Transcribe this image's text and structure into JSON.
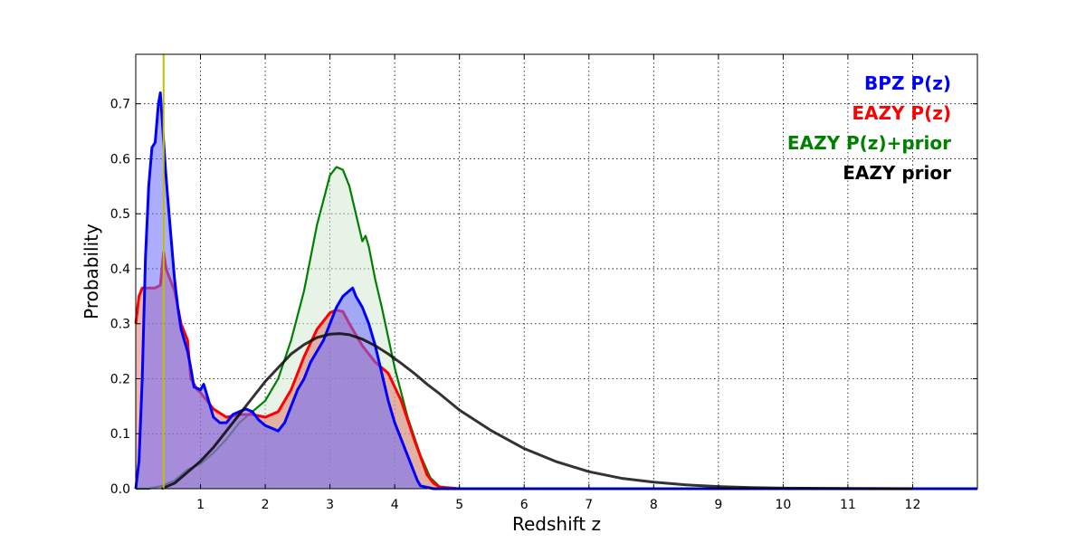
{
  "chart_data": {
    "type": "area",
    "title": "",
    "xlabel": "Redshift z",
    "ylabel": "Probability",
    "xlim": [
      0,
      13
    ],
    "ylim": [
      0,
      0.79
    ],
    "grid": true,
    "legend_placement": "top-right",
    "x_ticks": [
      1,
      2,
      3,
      4,
      5,
      6,
      7,
      8,
      9,
      10,
      11,
      12
    ],
    "y_ticks": [
      0.0,
      0.1,
      0.2,
      0.3,
      0.4,
      0.5,
      0.6,
      0.7
    ],
    "x_tick_labels": [
      "1",
      "2",
      "3",
      "4",
      "5",
      "6",
      "7",
      "8",
      "9",
      "10",
      "11",
      "12"
    ],
    "y_tick_labels": [
      "0.0",
      "0.1",
      "0.2",
      "0.3",
      "0.4",
      "0.5",
      "0.6",
      "0.7"
    ],
    "vertical_line": {
      "x": 0.43,
      "color": "#bfbf00"
    },
    "series": [
      {
        "name": "EAZY P(z)+prior",
        "color": "#008000",
        "fill": "#cfe8cf",
        "fill_opacity": 0.5,
        "line_width": 2.2,
        "x": [
          0,
          0.2,
          0.4,
          0.6,
          0.8,
          1.0,
          1.2,
          1.4,
          1.6,
          1.8,
          2.0,
          2.2,
          2.4,
          2.6,
          2.8,
          3.0,
          3.1,
          3.2,
          3.3,
          3.4,
          3.5,
          3.55,
          3.6,
          3.7,
          3.8,
          4.0,
          4.2,
          4.4,
          4.55,
          4.7,
          5.0,
          6,
          8,
          10,
          12,
          13
        ],
        "y": [
          0,
          0.0,
          0.005,
          0.015,
          0.035,
          0.045,
          0.065,
          0.09,
          0.12,
          0.14,
          0.16,
          0.2,
          0.27,
          0.36,
          0.48,
          0.57,
          0.585,
          0.58,
          0.55,
          0.5,
          0.45,
          0.46,
          0.44,
          0.38,
          0.33,
          0.22,
          0.13,
          0.06,
          0.02,
          0.003,
          0,
          0,
          0,
          0,
          0,
          0
        ]
      },
      {
        "name": "EAZY P(z)",
        "color": "#ff0000",
        "fill": "#e07060",
        "fill_opacity": 0.5,
        "line_width": 3,
        "x": [
          0,
          0.05,
          0.1,
          0.3,
          0.38,
          0.43,
          0.47,
          0.5,
          0.6,
          0.7,
          0.8,
          0.85,
          0.9,
          0.95,
          1.0,
          1.2,
          1.4,
          1.6,
          1.8,
          2.0,
          2.2,
          2.4,
          2.6,
          2.8,
          3.0,
          3.1,
          3.2,
          3.3,
          3.5,
          3.7,
          3.9,
          4.1,
          4.3,
          4.5,
          4.6,
          4.7,
          5.0,
          13
        ],
        "y": [
          0.3,
          0.35,
          0.365,
          0.365,
          0.37,
          0.43,
          0.4,
          0.39,
          0.36,
          0.3,
          0.27,
          0.2,
          0.19,
          0.18,
          0.175,
          0.145,
          0.13,
          0.135,
          0.135,
          0.13,
          0.14,
          0.18,
          0.24,
          0.29,
          0.32,
          0.325,
          0.322,
          0.3,
          0.26,
          0.23,
          0.21,
          0.16,
          0.09,
          0.025,
          0.01,
          0.003,
          0,
          0
        ]
      },
      {
        "name": "BPZ P(z)",
        "color": "#0000ff",
        "fill": "#6a6aff",
        "fill_opacity": 0.55,
        "line_width": 3,
        "x": [
          0,
          0.05,
          0.1,
          0.15,
          0.2,
          0.25,
          0.3,
          0.35,
          0.38,
          0.42,
          0.46,
          0.5,
          0.55,
          0.6,
          0.65,
          0.7,
          0.75,
          0.8,
          0.85,
          0.9,
          1.0,
          1.05,
          1.1,
          1.2,
          1.3,
          1.4,
          1.5,
          1.6,
          1.7,
          1.8,
          1.9,
          2.0,
          2.1,
          2.2,
          2.3,
          2.4,
          2.5,
          2.6,
          2.7,
          2.8,
          2.9,
          3.0,
          3.1,
          3.2,
          3.3,
          3.35,
          3.4,
          3.5,
          3.6,
          3.7,
          3.8,
          3.9,
          4.0,
          4.1,
          4.2,
          4.3,
          4.35,
          4.4,
          4.6,
          5.0,
          8,
          12,
          13
        ],
        "y": [
          0.0,
          0.05,
          0.2,
          0.42,
          0.55,
          0.62,
          0.63,
          0.7,
          0.72,
          0.65,
          0.58,
          0.52,
          0.45,
          0.38,
          0.33,
          0.29,
          0.27,
          0.25,
          0.22,
          0.185,
          0.18,
          0.19,
          0.17,
          0.13,
          0.12,
          0.12,
          0.135,
          0.14,
          0.145,
          0.14,
          0.125,
          0.115,
          0.11,
          0.105,
          0.12,
          0.15,
          0.18,
          0.2,
          0.23,
          0.25,
          0.27,
          0.3,
          0.33,
          0.35,
          0.36,
          0.365,
          0.35,
          0.33,
          0.3,
          0.26,
          0.21,
          0.16,
          0.12,
          0.09,
          0.06,
          0.03,
          0.015,
          0.005,
          0.0,
          0.0,
          0.0,
          0.0,
          0.0
        ]
      },
      {
        "name": "EAZY prior",
        "color": "#000000",
        "fill": "none",
        "line_width": 3,
        "line_opacity": 0.8,
        "x": [
          0.4,
          0.6,
          0.8,
          1.0,
          1.2,
          1.4,
          1.6,
          1.8,
          2.0,
          2.2,
          2.4,
          2.6,
          2.8,
          3.0,
          3.15,
          3.3,
          3.5,
          3.7,
          3.9,
          4.1,
          4.3,
          4.5,
          4.7,
          5.0,
          5.5,
          6.0,
          6.5,
          7.0,
          7.5,
          8.0,
          8.5,
          9.0,
          9.5,
          10.0,
          11.0,
          12.0
        ],
        "y": [
          0.0,
          0.01,
          0.03,
          0.05,
          0.075,
          0.105,
          0.135,
          0.165,
          0.195,
          0.22,
          0.245,
          0.262,
          0.275,
          0.281,
          0.282,
          0.28,
          0.272,
          0.26,
          0.245,
          0.228,
          0.21,
          0.19,
          0.172,
          0.143,
          0.105,
          0.073,
          0.049,
          0.031,
          0.019,
          0.012,
          0.007,
          0.004,
          0.002,
          0.001,
          0.0005,
          0.0
        ]
      }
    ],
    "legend": [
      {
        "label": "BPZ P(z)",
        "color": "#0000ff"
      },
      {
        "label": "EAZY P(z)",
        "color": "#ff0000"
      },
      {
        "label": "EAZY P(z)+prior",
        "color": "#008000"
      },
      {
        "label": "EAZY prior",
        "color": "#000000"
      }
    ]
  }
}
